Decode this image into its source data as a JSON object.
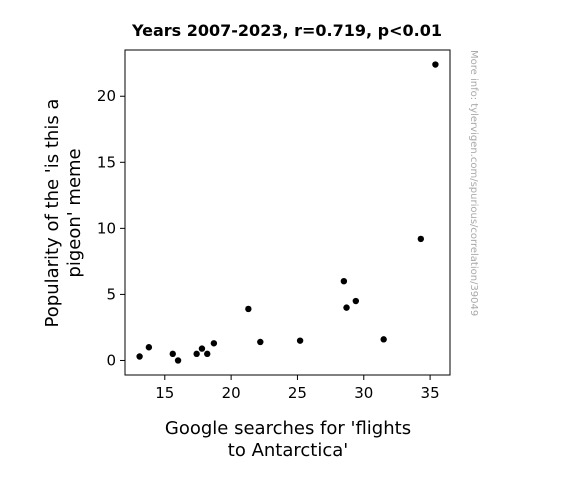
{
  "chart_data": {
    "type": "scatter",
    "title": "Years 2007-2023, r=0.719, p<0.01",
    "xlabel_lines": [
      "Google searches for 'flights",
      "to Antarctica'"
    ],
    "ylabel_lines": [
      "Popularity of the 'is this a",
      "pigeon' meme"
    ],
    "watermark": "More info: tylervigen.com/spurious/correlation/39049",
    "xlim": [
      12.0,
      36.5
    ],
    "ylim": [
      -1.1,
      23.5
    ],
    "xticks": [
      15,
      20,
      25,
      30,
      35
    ],
    "yticks": [
      0,
      5,
      10,
      15,
      20
    ],
    "xtick_labels": [
      "15",
      "20",
      "25",
      "30",
      "35"
    ],
    "ytick_labels": [
      "0",
      "5",
      "10",
      "15",
      "20"
    ],
    "grid": false,
    "marker_color": "#000000",
    "points": [
      {
        "x": 13.1,
        "y": 0.3
      },
      {
        "x": 13.8,
        "y": 1.0
      },
      {
        "x": 15.6,
        "y": 0.5
      },
      {
        "x": 16.0,
        "y": 0.0
      },
      {
        "x": 17.4,
        "y": 0.5
      },
      {
        "x": 17.8,
        "y": 0.9
      },
      {
        "x": 18.2,
        "y": 0.5
      },
      {
        "x": 18.7,
        "y": 1.3
      },
      {
        "x": 21.3,
        "y": 3.9
      },
      {
        "x": 22.2,
        "y": 1.4
      },
      {
        "x": 25.2,
        "y": 1.5
      },
      {
        "x": 28.5,
        "y": 6.0
      },
      {
        "x": 28.7,
        "y": 4.0
      },
      {
        "x": 29.4,
        "y": 4.5
      },
      {
        "x": 31.5,
        "y": 1.6
      },
      {
        "x": 34.3,
        "y": 9.2
      },
      {
        "x": 35.4,
        "y": 22.4
      }
    ]
  }
}
